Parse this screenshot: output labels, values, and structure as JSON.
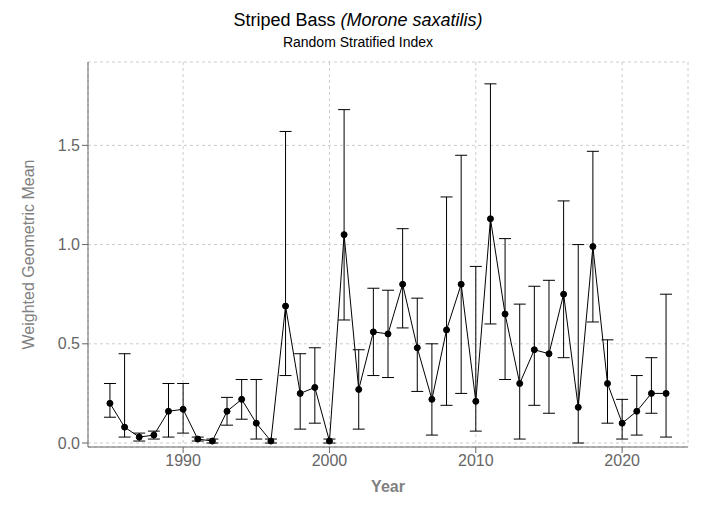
{
  "chart_data": {
    "type": "line",
    "title": "Striped Bass (Morone saxatilis)",
    "subtitle": "Random Stratified Index",
    "xlabel": "Year",
    "ylabel": "Weighted Geometric Mean",
    "color": "#000000",
    "marker": "circle",
    "grid": true,
    "x": [
      1985,
      1986,
      1987,
      1988,
      1989,
      1990,
      1991,
      1992,
      1993,
      1994,
      1995,
      1996,
      1997,
      1998,
      1999,
      2000,
      2001,
      2002,
      2003,
      2004,
      2005,
      2006,
      2007,
      2008,
      2009,
      2010,
      2011,
      2012,
      2013,
      2014,
      2015,
      2016,
      2017,
      2018,
      2019,
      2020,
      2021,
      2022,
      2023
    ],
    "values": [
      0.2,
      0.08,
      0.03,
      0.04,
      0.16,
      0.17,
      0.02,
      0.01,
      0.16,
      0.22,
      0.1,
      0.01,
      0.69,
      0.25,
      0.28,
      0.01,
      1.05,
      0.27,
      0.56,
      0.55,
      0.8,
      0.48,
      0.22,
      0.57,
      0.8,
      0.21,
      1.13,
      0.65,
      0.3,
      0.47,
      0.45,
      0.75,
      0.18,
      0.99,
      0.3,
      0.1,
      0.16,
      0.25,
      0.25
    ],
    "error_upper": [
      0.1,
      0.37,
      0.02,
      0.02,
      0.14,
      0.13,
      0.01,
      0.01,
      0.07,
      0.1,
      0.22,
      0.01,
      0.88,
      0.2,
      0.2,
      0.01,
      0.63,
      0.2,
      0.22,
      0.22,
      0.28,
      0.25,
      0.28,
      0.67,
      0.65,
      0.68,
      0.68,
      0.38,
      0.4,
      0.32,
      0.37,
      0.47,
      0.82,
      0.48,
      0.22,
      0.12,
      0.18,
      0.18,
      0.5
    ],
    "error_lower": [
      0.07,
      0.05,
      0.02,
      0.02,
      0.13,
      0.12,
      0.01,
      0.01,
      0.07,
      0.1,
      0.08,
      0.01,
      0.35,
      0.18,
      0.18,
      0.01,
      0.43,
      0.2,
      0.22,
      0.22,
      0.22,
      0.22,
      0.18,
      0.38,
      0.55,
      0.15,
      0.53,
      0.33,
      0.28,
      0.28,
      0.3,
      0.32,
      0.18,
      0.38,
      0.2,
      0.08,
      0.12,
      0.1,
      0.22
    ],
    "xlim": [
      1983.5,
      2024.5
    ],
    "xticks": [
      1990,
      2000,
      2010,
      2020
    ],
    "ylim": [
      -0.02,
      1.92
    ],
    "yticks": [
      {
        "value": 0,
        "label": "0.0"
      },
      0.5,
      {
        "value": 1,
        "label": "1.0"
      },
      1.5
    ]
  }
}
